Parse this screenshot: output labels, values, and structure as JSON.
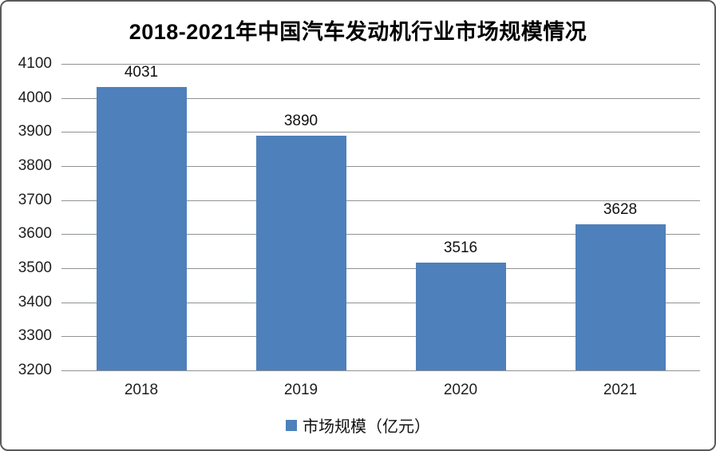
{
  "chart_data": {
    "type": "bar",
    "title": "2018-2021年中国汽车发动机行业市场规模情况",
    "categories": [
      "2018",
      "2019",
      "2020",
      "2021"
    ],
    "values": [
      4031,
      3890,
      3516,
      3628
    ],
    "series": [
      {
        "name": "市场规模（亿元）",
        "values": [
          4031,
          3890,
          3516,
          3628
        ]
      }
    ],
    "legend_label": "市场规模（亿元）",
    "legend_position": "bottom",
    "xlabel": "",
    "ylabel": "",
    "ylim": [
      3200,
      4100
    ],
    "ytick_interval": 100,
    "yticks": [
      3200,
      3300,
      3400,
      3500,
      3600,
      3700,
      3800,
      3900,
      4000,
      4100
    ],
    "grid": true,
    "colors": {
      "bar": "#4E80BC",
      "gridline": "#909294",
      "border": "#5a5a5a",
      "text": "#111111"
    }
  }
}
